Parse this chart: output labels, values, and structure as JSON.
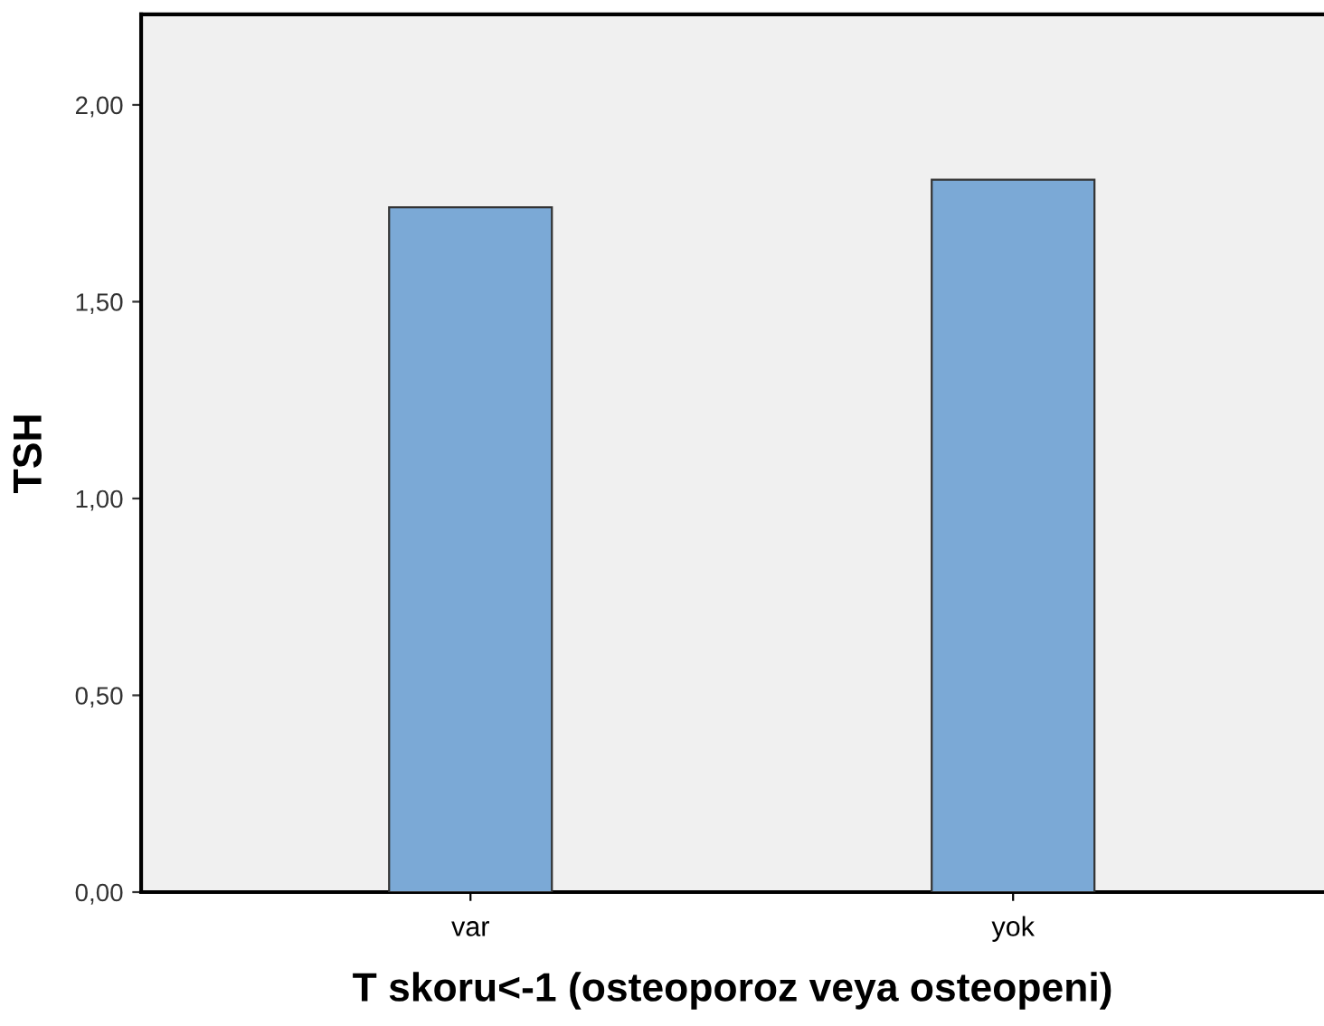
{
  "chart_data": {
    "type": "bar",
    "xlabel": "T skoru<-1 (osteoporoz veya osteopeni)",
    "ylabel": "TSH",
    "categories": [
      "var",
      "yok"
    ],
    "values": [
      1.74,
      1.81
    ],
    "color": "#7ba9d6",
    "ylim": [
      0,
      2.23
    ],
    "yticks": [
      {
        "value": 0,
        "label": "0,00"
      },
      {
        "value": 0.5,
        "label": "0,50"
      },
      {
        "value": 1.0,
        "label": "1,00"
      },
      {
        "value": 1.5,
        "label": "1,50"
      },
      {
        "value": 2.0,
        "label": "2,00"
      }
    ],
    "grid": false
  }
}
